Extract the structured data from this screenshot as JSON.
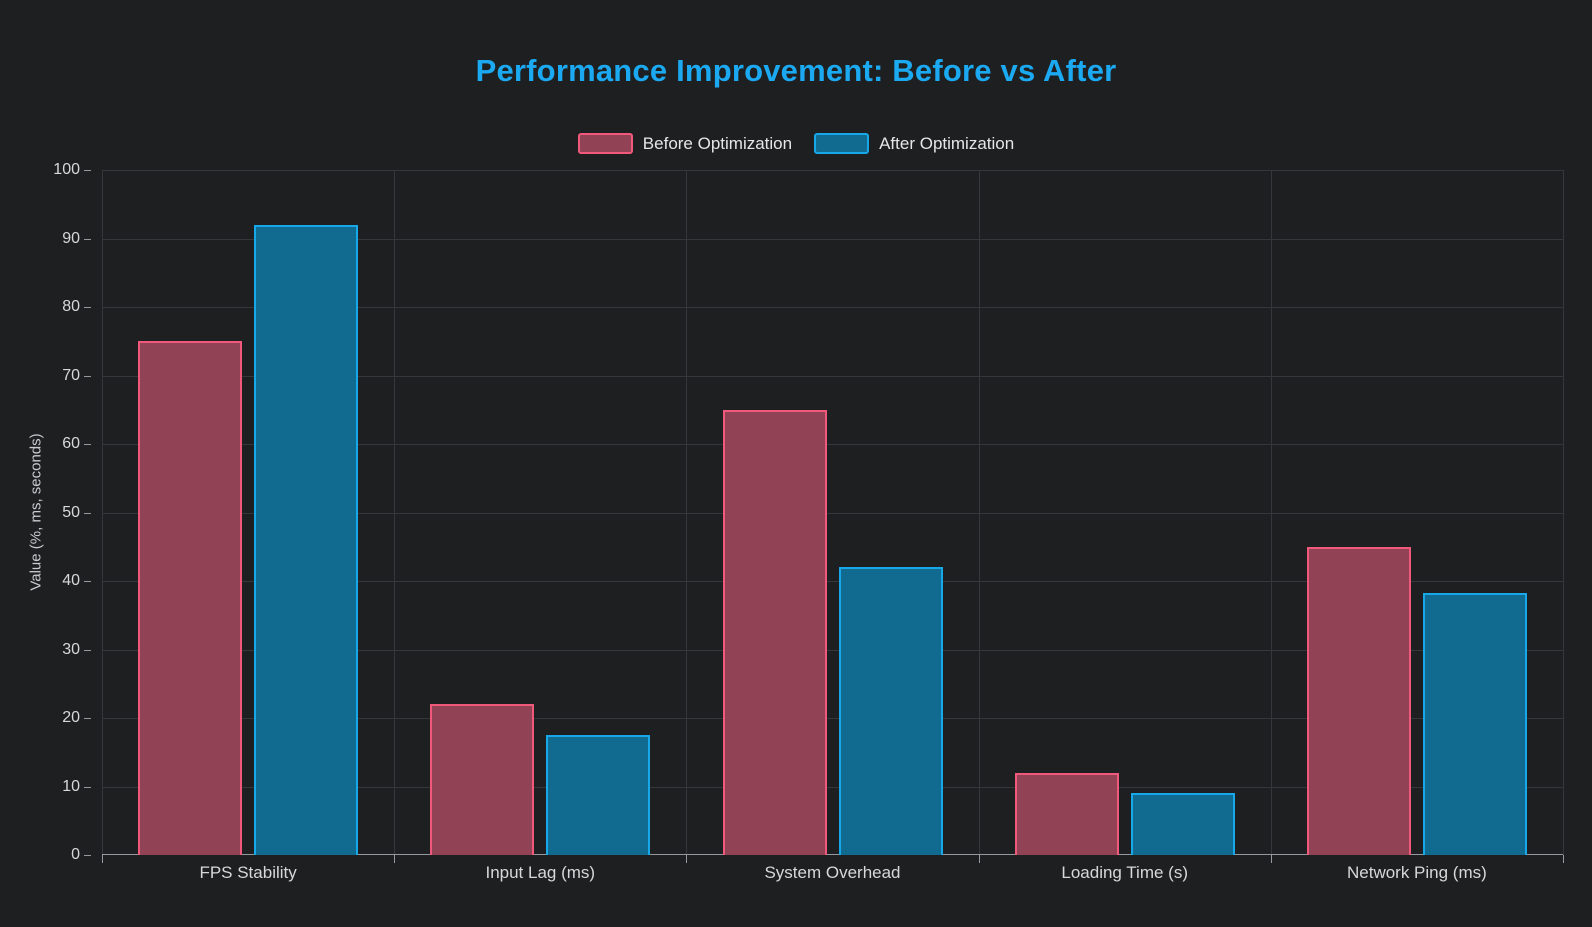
{
  "theme": {
    "background": "#1e1f21",
    "title_color": "#1ba9f2",
    "grid_color": "#35373a",
    "axis_color": "#96999d",
    "tick_label_color": "#d6d8da",
    "category_label_color": "#d6d8da",
    "legend_text_color": "#e4e6e8",
    "ylabel_color": "#c9cbce"
  },
  "chart_data": {
    "type": "bar",
    "title": "Performance Improvement: Before vs After",
    "categories": [
      "FPS Stability",
      "Input Lag (ms)",
      "System Overhead",
      "Loading Time (s)",
      "Network Ping (ms)"
    ],
    "series": [
      {
        "name": "Before Optimization",
        "values": [
          75,
          22,
          65,
          12,
          45
        ],
        "fill": "#914254",
        "border": "#f0597c"
      },
      {
        "name": "After Optimization",
        "values": [
          92,
          17.5,
          42,
          9,
          38.3
        ],
        "fill": "#116b91",
        "border": "#16a8e8"
      }
    ],
    "xlabel": "",
    "ylabel": "Value (%, ms, seconds)",
    "ylim": [
      0,
      100
    ],
    "ytick_step": 10,
    "y_ticks": [
      0,
      10,
      20,
      30,
      40,
      50,
      60,
      70,
      80,
      90,
      100
    ],
    "grid": true,
    "legend_position": "top"
  }
}
